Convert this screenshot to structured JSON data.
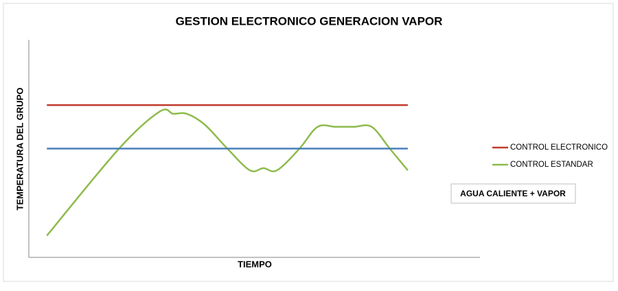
{
  "chart_data": {
    "type": "line",
    "title": "GESTION ELECTRONICO GENERACION VAPOR",
    "xlabel": "TIEMPO",
    "ylabel": "TEMPERATURA DEL GRUPO",
    "annotation": "AGUA CALIENTE + VAPOR",
    "smooth": true,
    "x": [
      4,
      20,
      29,
      32,
      35,
      39,
      44,
      49,
      52,
      55,
      60,
      64,
      68,
      72,
      76,
      80,
      84
    ],
    "xlim": [
      0,
      100
    ],
    "ylim": [
      0,
      10
    ],
    "series": [
      {
        "name": "CONTROL ELECTRONICO",
        "color": "#c0392b",
        "values": [
          7,
          7,
          7,
          7,
          7,
          7,
          7,
          7,
          7,
          7,
          7,
          7,
          7,
          7,
          7,
          7,
          7
        ]
      },
      {
        "name": "CONTROL ESTANDAR",
        "color": "#8dbb4c",
        "values": [
          1,
          5,
          6.7,
          6.6,
          6.6,
          6.1,
          5,
          4,
          4.1,
          4,
          5,
          6,
          6,
          6,
          6,
          5,
          4
        ]
      },
      {
        "name": "",
        "color": "#4a7ebb",
        "values": [
          5,
          5,
          5,
          5,
          5,
          5,
          5,
          5,
          5,
          5,
          5,
          5,
          5,
          5,
          5,
          5,
          5
        ]
      }
    ]
  }
}
